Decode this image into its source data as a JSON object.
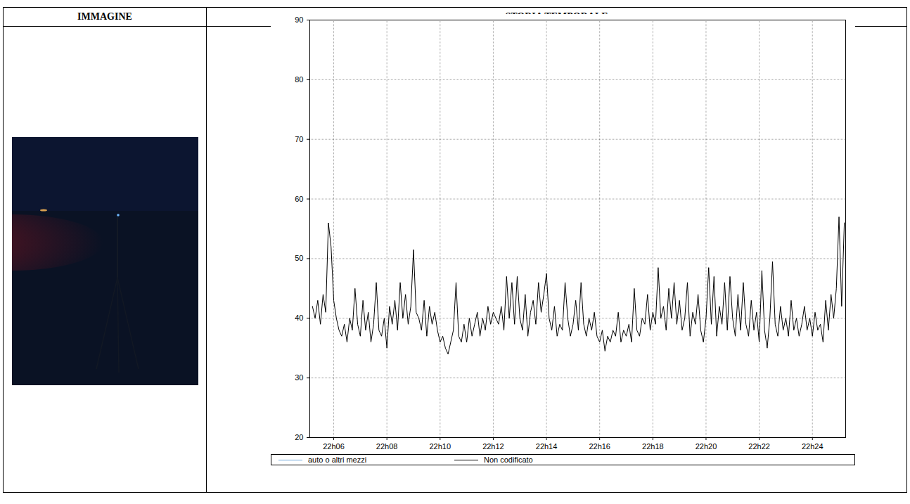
{
  "table": {
    "headers": [
      "IMMAGINE",
      "STORIA TEMPORALE"
    ]
  },
  "chart_data": {
    "type": "line",
    "x": [
      5.2,
      5.3,
      5.4,
      5.5,
      5.6,
      5.7,
      5.8,
      5.9,
      6,
      6.1,
      6.2,
      6.3,
      6.4,
      6.5,
      6.6,
      6.7,
      6.8,
      6.9,
      7,
      7.1,
      7.2,
      7.3,
      7.4,
      7.5,
      7.6,
      7.7,
      7.8,
      7.9,
      8,
      8.1,
      8.2,
      8.3,
      8.4,
      8.5,
      8.6,
      8.7,
      8.8,
      8.9,
      9,
      9.1,
      9.2,
      9.3,
      9.4,
      9.5,
      9.6,
      9.7,
      9.8,
      9.9,
      10,
      10.1,
      10.2,
      10.3,
      10.4,
      10.5,
      10.6,
      10.7,
      10.8,
      10.9,
      11,
      11.1,
      11.2,
      11.3,
      11.4,
      11.5,
      11.6,
      11.7,
      11.8,
      11.9,
      12,
      12.1,
      12.2,
      12.3,
      12.4,
      12.5,
      12.6,
      12.7,
      12.8,
      12.9,
      13,
      13.1,
      13.2,
      13.3,
      13.4,
      13.5,
      13.6,
      13.7,
      13.8,
      13.9,
      14,
      14.1,
      14.2,
      14.3,
      14.4,
      14.5,
      14.6,
      14.7,
      14.8,
      14.9,
      15,
      15.1,
      15.2,
      15.3,
      15.4,
      15.5,
      15.6,
      15.7,
      15.8,
      15.9,
      16,
      16.1,
      16.2,
      16.3,
      16.4,
      16.5,
      16.6,
      16.7,
      16.8,
      16.9,
      17,
      17.1,
      17.2,
      17.3,
      17.4,
      17.5,
      17.6,
      17.7,
      17.8,
      17.9,
      18,
      18.1,
      18.2,
      18.3,
      18.4,
      18.5,
      18.6,
      18.7,
      18.8,
      18.9,
      19,
      19.1,
      19.2,
      19.3,
      19.4,
      19.5,
      19.6,
      19.7,
      19.8,
      19.9,
      20,
      20.1,
      20.2,
      20.3,
      20.4,
      20.5,
      20.6,
      20.7,
      20.8,
      20.9,
      21,
      21.1,
      21.2,
      21.3,
      21.4,
      21.5,
      21.6,
      21.7,
      21.8,
      21.9,
      22,
      22.1,
      22.2,
      22.3,
      22.4,
      22.5,
      22.6,
      22.7,
      22.8,
      22.9,
      23,
      23.1,
      23.2,
      23.3,
      23.4,
      23.5,
      23.6,
      23.7,
      23.8,
      23.9,
      24,
      24.1,
      24.2,
      24.3,
      24.4,
      24.5,
      24.6,
      24.7,
      24.8,
      24.9,
      25,
      25.1,
      25.2
    ],
    "series": [
      {
        "name": "auto o altri mezzi",
        "color": "#6fa8dc",
        "values": [
          null,
          null,
          null,
          null,
          null,
          null,
          null,
          null,
          null,
          null,
          null,
          null,
          null,
          null,
          null,
          null,
          null,
          null,
          null,
          null,
          null,
          null,
          null,
          null,
          null,
          null,
          null,
          null,
          null,
          null,
          null,
          null,
          null,
          null,
          null,
          null,
          null,
          null,
          null,
          null,
          null,
          null,
          null,
          null,
          null,
          null,
          null,
          null,
          null,
          null,
          null,
          null,
          null,
          null,
          null,
          null,
          null,
          null,
          null,
          null,
          null,
          null,
          null,
          null,
          null,
          null,
          null,
          null,
          null,
          null,
          null,
          null,
          null,
          null,
          null,
          null,
          null,
          null,
          null,
          null,
          null,
          null,
          null,
          null,
          null,
          null,
          null,
          null,
          null,
          null,
          null,
          null,
          null,
          null,
          null,
          null,
          null,
          null,
          null,
          null,
          null,
          null,
          null,
          null,
          null,
          null,
          null,
          null,
          null,
          null,
          null,
          null,
          null,
          null,
          null,
          null,
          null,
          null,
          null,
          null,
          null,
          null,
          null,
          null,
          null,
          null,
          null,
          null,
          null,
          null,
          null,
          null,
          null,
          null,
          null,
          null,
          null,
          null,
          null,
          null,
          null,
          null,
          null,
          null,
          null,
          null,
          null,
          null,
          null,
          null,
          null,
          null,
          null,
          null,
          null,
          null,
          null,
          null,
          null,
          null,
          null,
          null,
          null,
          null,
          null,
          null,
          null,
          null,
          null,
          null,
          null,
          null,
          null,
          null,
          null,
          null,
          null,
          null,
          null,
          null,
          null,
          null,
          null,
          null,
          null,
          null,
          null,
          null,
          null,
          null,
          null,
          null,
          null,
          null,
          null,
          null,
          null,
          null,
          null,
          null,
          null
        ]
      },
      {
        "name": "Non codificato",
        "color": "#000000",
        "values": [
          42,
          40,
          43,
          39,
          44,
          41,
          56,
          52,
          43,
          40,
          38,
          37,
          39,
          36,
          40,
          38,
          45,
          39,
          37,
          43,
          38,
          41,
          36,
          39,
          46,
          38,
          37,
          40,
          35,
          42,
          39,
          43,
          38,
          46,
          40,
          44,
          39,
          42,
          51.5,
          41,
          40,
          38,
          43,
          37,
          42,
          39,
          41,
          38,
          36,
          37,
          35,
          34,
          36,
          38,
          46,
          37,
          36,
          39,
          36,
          40,
          37,
          39,
          41,
          37,
          40,
          38,
          42,
          39,
          41,
          40,
          39,
          42,
          38,
          47,
          40,
          46,
          39,
          47,
          40,
          38,
          44,
          37,
          41,
          43,
          39,
          46,
          41,
          44,
          47.5,
          40,
          38,
          42,
          37,
          39,
          38,
          46,
          40,
          37,
          39,
          43,
          38,
          46,
          39,
          37,
          40,
          38,
          41,
          37,
          36,
          38,
          34.5,
          37,
          36,
          38,
          37,
          41,
          36,
          38,
          37,
          39,
          36,
          45,
          38,
          37,
          40,
          39,
          44,
          38,
          41,
          39,
          48.5,
          40,
          42,
          38,
          45,
          40,
          46,
          39,
          43,
          38,
          40,
          46,
          37,
          41,
          39,
          44,
          38,
          36,
          40,
          48.5,
          39,
          47,
          37,
          42,
          39,
          46,
          38,
          47,
          40,
          37,
          44,
          38,
          46,
          39,
          37,
          43,
          38,
          41,
          36,
          48,
          38,
          35,
          40,
          49.5,
          39,
          37,
          42,
          38,
          40,
          37,
          43,
          38,
          40,
          37,
          39,
          42,
          38,
          40,
          37,
          41,
          38,
          39,
          36,
          43,
          38,
          44,
          40,
          45,
          57,
          42,
          56
        ]
      }
    ],
    "xlim": [
      5.1,
      25.25
    ],
    "xticks": [
      {
        "value": 6,
        "label": "22h06"
      },
      {
        "value": 8,
        "label": "22h08"
      },
      {
        "value": 10,
        "label": "22h10"
      },
      {
        "value": 12,
        "label": "22h12"
      },
      {
        "value": 14,
        "label": "22h14"
      },
      {
        "value": 16,
        "label": "22h16"
      },
      {
        "value": 18,
        "label": "22h18"
      },
      {
        "value": 20,
        "label": "22h20"
      },
      {
        "value": 22,
        "label": "22h22"
      },
      {
        "value": 24,
        "label": "22h24"
      }
    ],
    "ylim": [
      20,
      90
    ],
    "yticks": [
      20,
      30,
      40,
      50,
      60,
      70,
      80,
      90
    ],
    "grid": true,
    "legend": "bottom"
  }
}
